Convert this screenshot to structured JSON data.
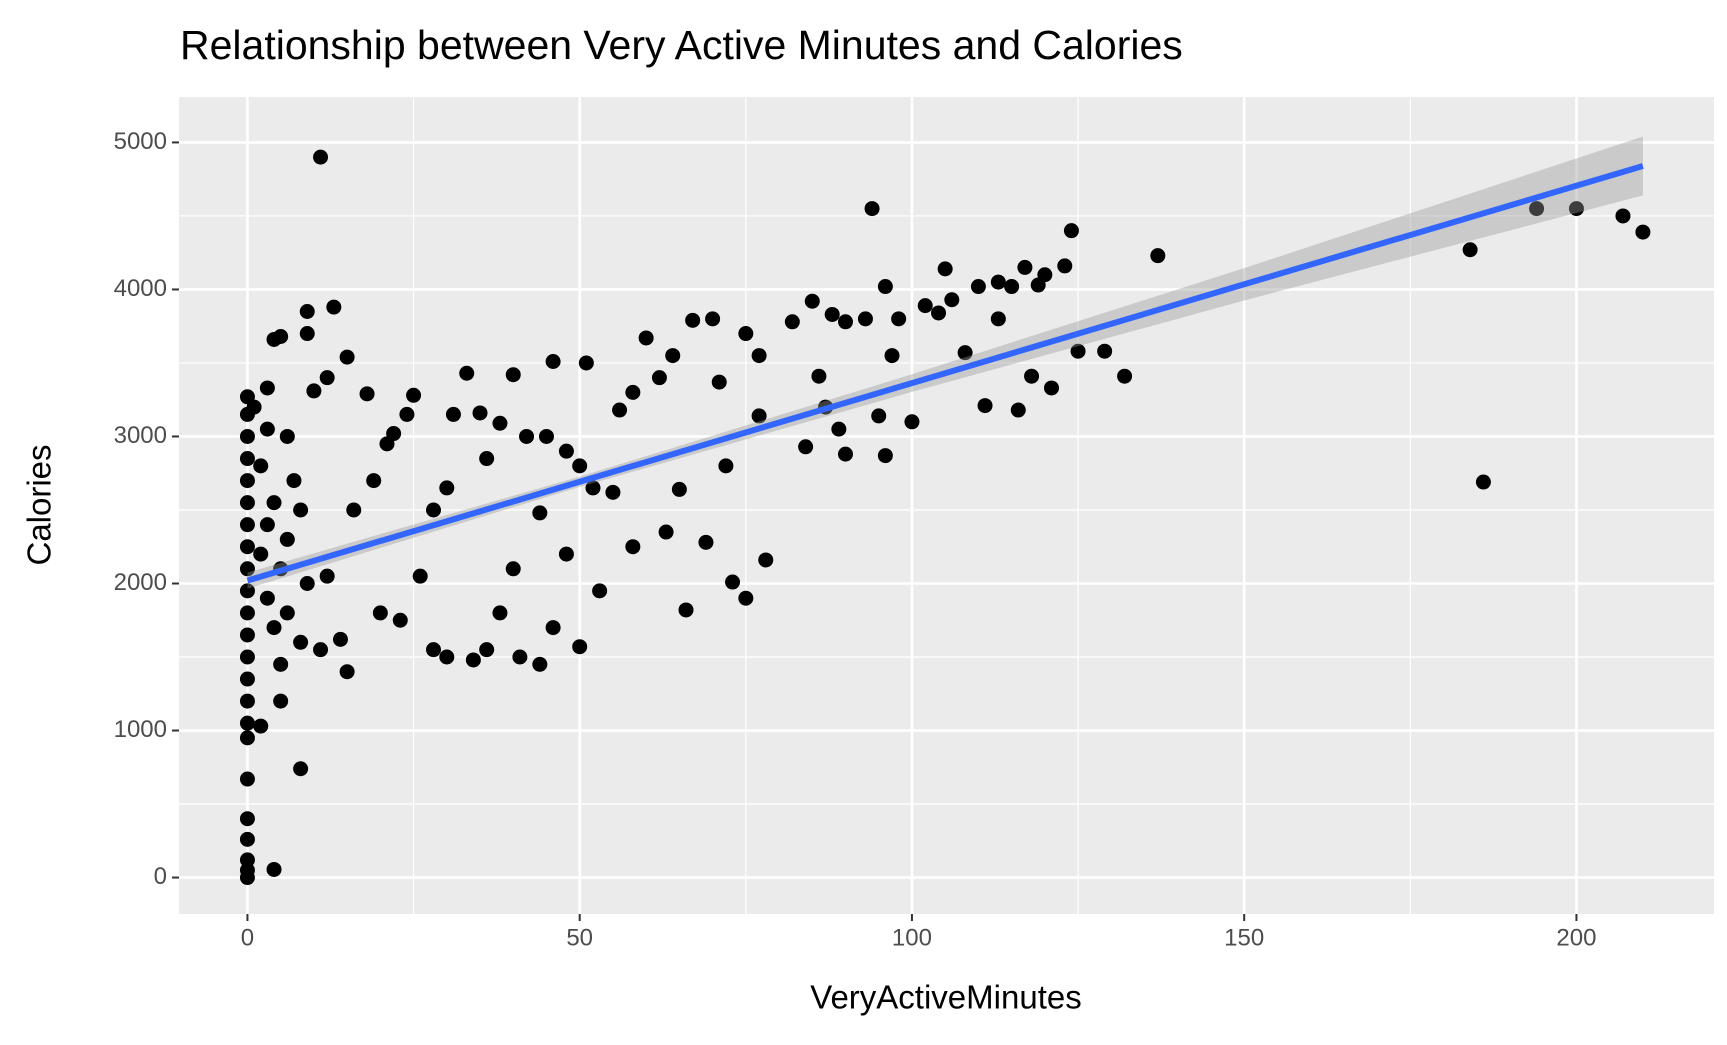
{
  "chart_data": {
    "type": "scatter",
    "title": "Relationship between Very Active Minutes and Calories",
    "x_label": "VeryActiveMinutes",
    "y_label": "Calories",
    "xlim": [
      -10.3,
      220.7
    ],
    "ylim": [
      -248,
      5309
    ],
    "xticks": [
      0,
      50,
      100,
      150,
      200
    ],
    "yticks": [
      0,
      1000,
      2000,
      3000,
      4000,
      5000
    ],
    "x_minor_grid": [
      25,
      75,
      125,
      175
    ],
    "y_minor_grid": [
      500,
      1500,
      2500,
      3500,
      4500
    ],
    "grid": true,
    "panel_color": "#ebebeb",
    "points": {
      "color": "#000000",
      "x": [
        0,
        0,
        0,
        0,
        0,
        0,
        0,
        0,
        0,
        0,
        0,
        0,
        0,
        0,
        0,
        0,
        0,
        0,
        0,
        0,
        0,
        0,
        0,
        2,
        4,
        5,
        8,
        11,
        13,
        9,
        9,
        5,
        4,
        15,
        12,
        3,
        18,
        10,
        1,
        3,
        6,
        2,
        7,
        4,
        8,
        3,
        6,
        2,
        5,
        9,
        3,
        6,
        4,
        8,
        5,
        11,
        15,
        14,
        12,
        16,
        19,
        21,
        22,
        25,
        24,
        20,
        23,
        26,
        28,
        30,
        31,
        33,
        35,
        38,
        36,
        40,
        42,
        44,
        46,
        45,
        48,
        50,
        51,
        52,
        30,
        34,
        28,
        36,
        41,
        44,
        50,
        40,
        38,
        46,
        48,
        53,
        55,
        56,
        58,
        58,
        60,
        62,
        63,
        64,
        65,
        66,
        67,
        69,
        70,
        71,
        72,
        73,
        75,
        75,
        77,
        78,
        77,
        82,
        84,
        85,
        86,
        87,
        88,
        90,
        89,
        90,
        93,
        94,
        95,
        96,
        96,
        97,
        98,
        100,
        102,
        104,
        105,
        106,
        108,
        110,
        111,
        113,
        113,
        115,
        116,
        117,
        118,
        119,
        120,
        121,
        123,
        124,
        125,
        129,
        132,
        137,
        184,
        186,
        194,
        200,
        207,
        210
      ],
      "y": [
        0,
        50,
        120,
        260,
        400,
        670,
        950,
        1050,
        1200,
        1350,
        1500,
        1650,
        1800,
        1950,
        2100,
        2250,
        2400,
        2550,
        2700,
        2850,
        3000,
        3150,
        3270,
        1030,
        55,
        1200,
        740,
        4900,
        3880,
        3850,
        3700,
        3680,
        3660,
        3540,
        3400,
        3330,
        3290,
        3310,
        3200,
        3050,
        3000,
        2800,
        2700,
        2550,
        2500,
        2400,
        2300,
        2200,
        2100,
        2000,
        1900,
        1800,
        1700,
        1600,
        1450,
        1550,
        1400,
        1620,
        2050,
        2500,
        2700,
        2950,
        3020,
        3280,
        3150,
        1800,
        1750,
        2050,
        2500,
        2650,
        3150,
        3430,
        3160,
        3090,
        2850,
        3420,
        3000,
        2480,
        3510,
        3000,
        2900,
        2800,
        3500,
        2650,
        1500,
        1480,
        1550,
        1550,
        1500,
        1450,
        1570,
        2100,
        1800,
        1700,
        2200,
        1950,
        2620,
        3180,
        3300,
        2250,
        3670,
        3400,
        2350,
        3550,
        2640,
        1820,
        3790,
        2280,
        3800,
        3370,
        2800,
        2010,
        1900,
        3700,
        3550,
        2160,
        3140,
        3780,
        2930,
        3920,
        3410,
        3200,
        3830,
        3780,
        3050,
        2880,
        3800,
        4550,
        3140,
        4020,
        2870,
        3550,
        3800,
        3100,
        3890,
        3840,
        4140,
        3930,
        3570,
        4020,
        3210,
        4050,
        3800,
        4020,
        3180,
        4150,
        3410,
        4030,
        4100,
        3330,
        4160,
        4400,
        3580,
        3580,
        3410,
        4230,
        4270,
        2690,
        4550,
        4550,
        4500,
        4390
      ]
    },
    "fit": {
      "color": "#3366ff",
      "band_color": "#999999",
      "x": [
        0,
        50,
        100,
        150,
        210
      ],
      "y": [
        2020,
        2692,
        3363,
        4035,
        4840
      ],
      "band_lower": [
        1965,
        2657,
        3303,
        3925,
        4640
      ],
      "band_upper": [
        2075,
        2727,
        3423,
        4145,
        5040
      ]
    }
  }
}
